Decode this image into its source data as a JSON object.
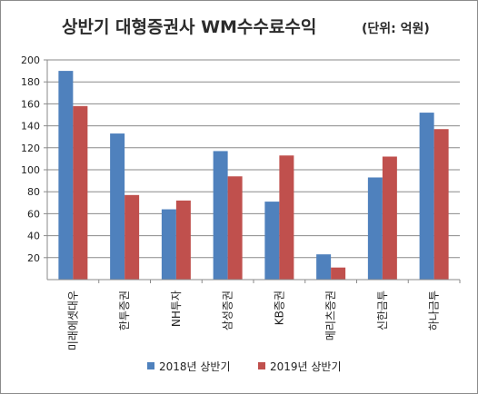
{
  "chart_data": {
    "type": "bar",
    "title": "상반기 대형증권사 WM수수료수익",
    "subtitle": "(단위: 억원)",
    "xlabel": "",
    "ylabel": "",
    "ylim": [
      0,
      200
    ],
    "yticks": [
      20,
      40,
      60,
      80,
      100,
      120,
      140,
      160,
      180,
      200
    ],
    "grid": true,
    "legend_position": "bottom",
    "categories": [
      "미래에셋대우",
      "한투증권",
      "NH투자",
      "삼성증권",
      "KB증권",
      "메리츠증권",
      "신한금투",
      "하나금투"
    ],
    "series": [
      {
        "name": "2018년 상반기",
        "color": "#4f81bd",
        "values": [
          190,
          133,
          64,
          117,
          71,
          23,
          93,
          152
        ]
      },
      {
        "name": "2019년 상반기",
        "color": "#c0504d",
        "values": [
          158,
          77,
          72,
          94,
          113,
          11,
          112,
          137
        ]
      }
    ]
  }
}
